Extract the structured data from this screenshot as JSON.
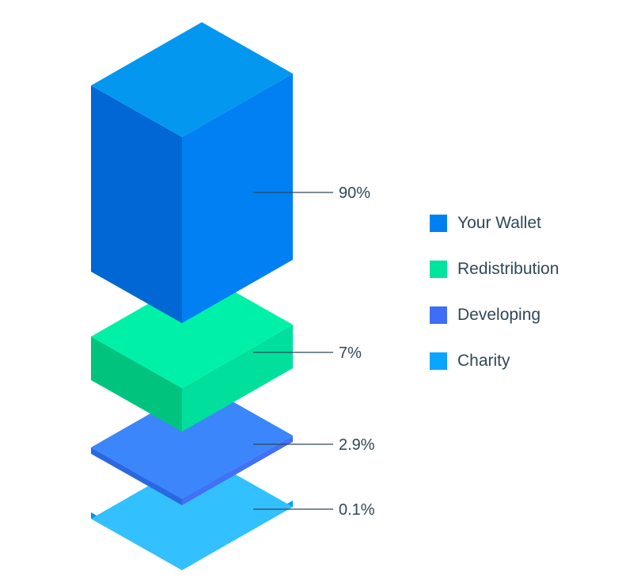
{
  "chart_data": {
    "type": "bar",
    "style": "stacked isometric 3D blocks",
    "categories": [
      "Your Wallet",
      "Redistribution",
      "Developing",
      "Charity"
    ],
    "values": [
      90,
      7,
      2.9,
      0.1
    ],
    "value_labels": [
      "90%",
      "7%",
      "2.9%",
      "0.1%"
    ],
    "unit": "%",
    "legend_position": "right",
    "grid": false,
    "colors": {
      "Your Wallet": {
        "top": "#0397f0",
        "left": "#0067d5",
        "right": "#0080f2",
        "swatch": "#0080f0"
      },
      "Redistribution": {
        "top": "#00f0a8",
        "left": "#00c47e",
        "right": "#00e09c",
        "swatch": "#00e49e"
      },
      "Developing": {
        "top": "#3c86fb",
        "left": "#2a68e2",
        "right": "#4270f6",
        "swatch": "#3f6ef6"
      },
      "Charity": {
        "top": "#33c0ff",
        "left": "#0090f2",
        "right": "#04a2fd",
        "swatch": "#0aa5fc"
      }
    },
    "leader_line_color": "#2f4858"
  }
}
